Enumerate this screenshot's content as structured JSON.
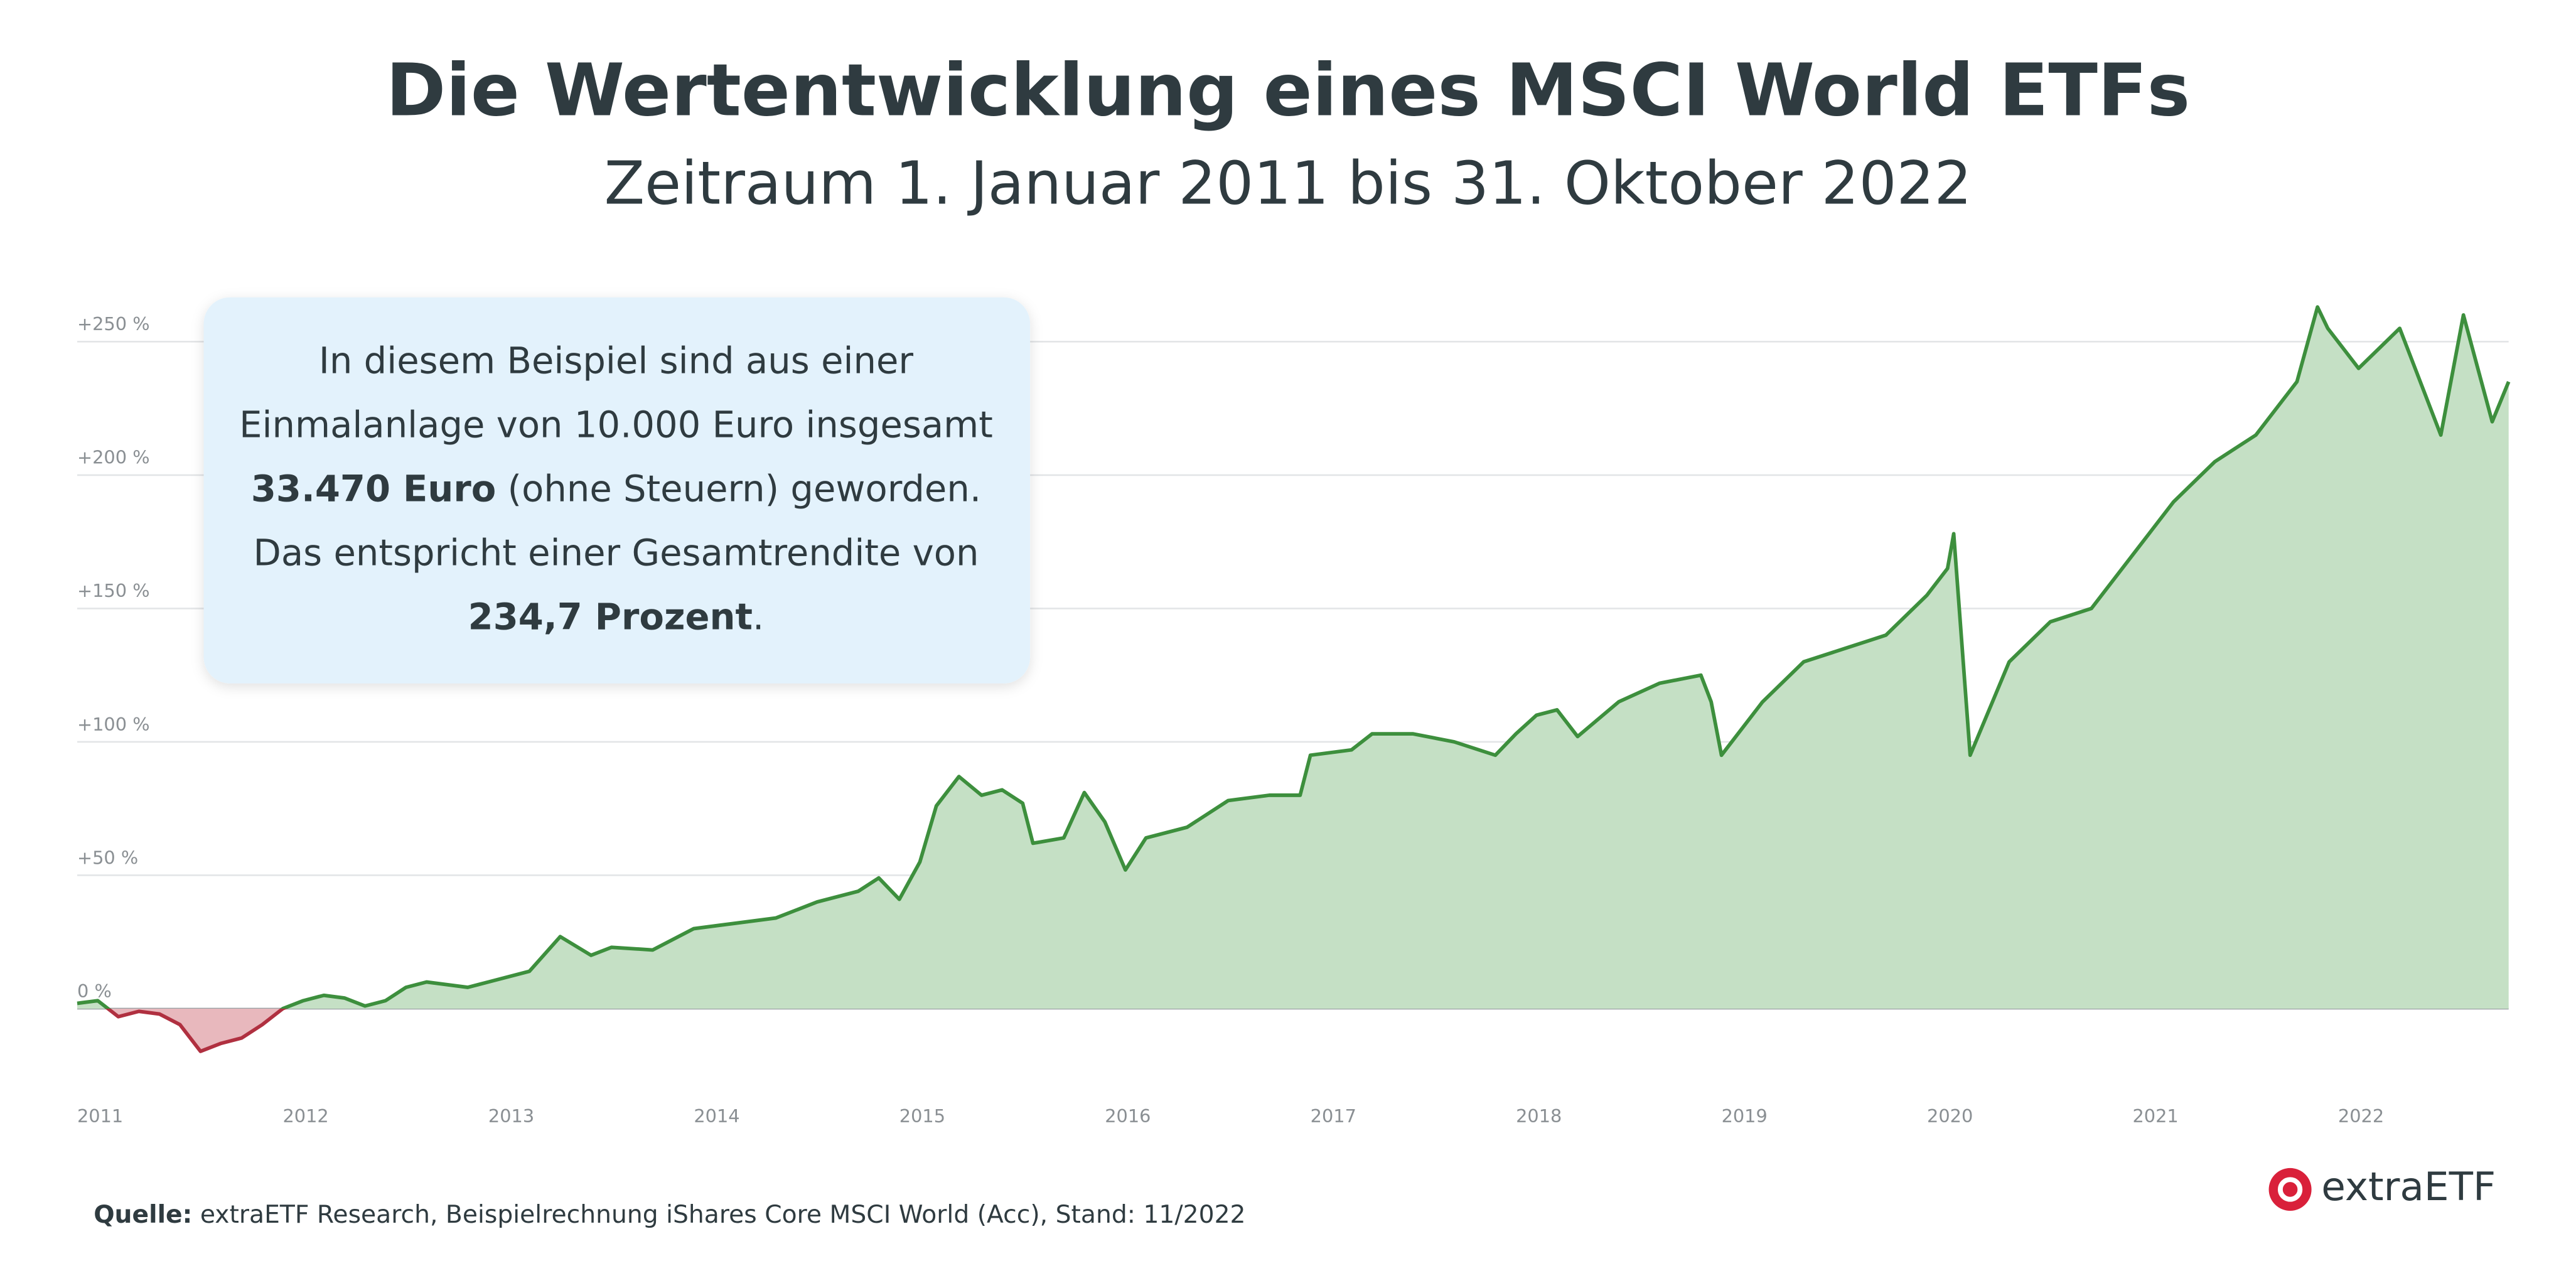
{
  "chart_data": {
    "type": "line",
    "title": "Die Wertentwicklung eines MSCI World ETFs",
    "subtitle": "Zeitraum 1. Januar 2011 bis 31. Oktober 2022",
    "x": [
      2011.0,
      2011.1,
      2011.2,
      2011.3,
      2011.4,
      2011.5,
      2011.6,
      2011.7,
      2011.8,
      2011.9,
      2012.0,
      2012.1,
      2012.2,
      2012.3,
      2012.4,
      2012.5,
      2012.6,
      2012.7,
      2012.8,
      2012.9,
      2013.0,
      2013.2,
      2013.35,
      2013.5,
      2013.6,
      2013.8,
      2014.0,
      2014.2,
      2014.4,
      2014.6,
      2014.8,
      2014.9,
      2015.0,
      2015.1,
      2015.18,
      2015.29,
      2015.4,
      2015.5,
      2015.6,
      2015.65,
      2015.8,
      2015.9,
      2016.0,
      2016.1,
      2016.2,
      2016.4,
      2016.6,
      2016.8,
      2016.95,
      2017.0,
      2017.2,
      2017.3,
      2017.5,
      2017.7,
      2017.9,
      2018.0,
      2018.1,
      2018.2,
      2018.3,
      2018.5,
      2018.7,
      2018.9,
      2018.95,
      2019.0,
      2019.2,
      2019.4,
      2019.6,
      2019.8,
      2020.0,
      2020.1,
      2020.13,
      2020.21,
      2020.4,
      2020.6,
      2020.8,
      2021.0,
      2021.2,
      2021.4,
      2021.6,
      2021.8,
      2021.9,
      2021.95,
      2022.1,
      2022.3,
      2022.4,
      2022.5,
      2022.61,
      2022.75,
      2022.83
    ],
    "series": [
      {
        "name": null,
        "color": "#3d8f3d",
        "negative_color": "#b03040",
        "fill": "#c5e0c5",
        "negative_fill": "#e8b8bd",
        "values": [
          2,
          3,
          -3,
          -1,
          -2,
          -6,
          -16,
          -13,
          -11,
          -6,
          0,
          3,
          5,
          4,
          1,
          3,
          8,
          10,
          9,
          8,
          10,
          14,
          27,
          20,
          23,
          22,
          30,
          32,
          34,
          40,
          44,
          49,
          41,
          55,
          76,
          87,
          80,
          82,
          77,
          62,
          64,
          81,
          70,
          52,
          64,
          68,
          78,
          80,
          80,
          95,
          97,
          103,
          103,
          100,
          95,
          103,
          110,
          112,
          102,
          115,
          122,
          125,
          115,
          95,
          115,
          130,
          135,
          140,
          155,
          165,
          178,
          95,
          130,
          145,
          150,
          170,
          190,
          205,
          215,
          235,
          263,
          255,
          240,
          255,
          235,
          215,
          260,
          220,
          235
        ]
      }
    ],
    "xlim": [
      2011,
      2022.83
    ],
    "xticks": [
      2011,
      2012,
      2013,
      2014,
      2015,
      2016,
      2017,
      2018,
      2019,
      2020,
      2021,
      2022
    ],
    "ylim": [
      -22,
      270
    ],
    "yticks": [
      {
        "value": 0,
        "label": "0 %"
      },
      {
        "value": 50,
        "label": "+50 %"
      },
      {
        "value": 100,
        "label": "+100 %"
      },
      {
        "value": 150,
        "label": "+150 %"
      },
      {
        "value": 200,
        "label": "+200 %"
      },
      {
        "value": 250,
        "label": "+250 %"
      }
    ],
    "grid": true,
    "annotation": [
      [
        {
          "text": "In diesem Beispiel sind aus einer",
          "bold": false
        }
      ],
      [
        {
          "text": "Einmalanlage von 10.000 Euro insgesamt",
          "bold": false
        }
      ],
      [
        {
          "text": "33.470 Euro",
          "bold": true
        },
        {
          "text": " (ohne Steuern) geworden.",
          "bold": false
        }
      ],
      [
        {
          "text": "Das entspricht einer Gesamtrendite von",
          "bold": false
        }
      ],
      [
        {
          "text": "234,7 Prozent",
          "bold": true
        },
        {
          "text": ".",
          "bold": false
        }
      ]
    ],
    "source_label": "Quelle:",
    "source": " extraETF Research, Beispielrechnung iShares Core MSCI World (Acc), Stand: 11/2022",
    "logo": "extraETF"
  }
}
